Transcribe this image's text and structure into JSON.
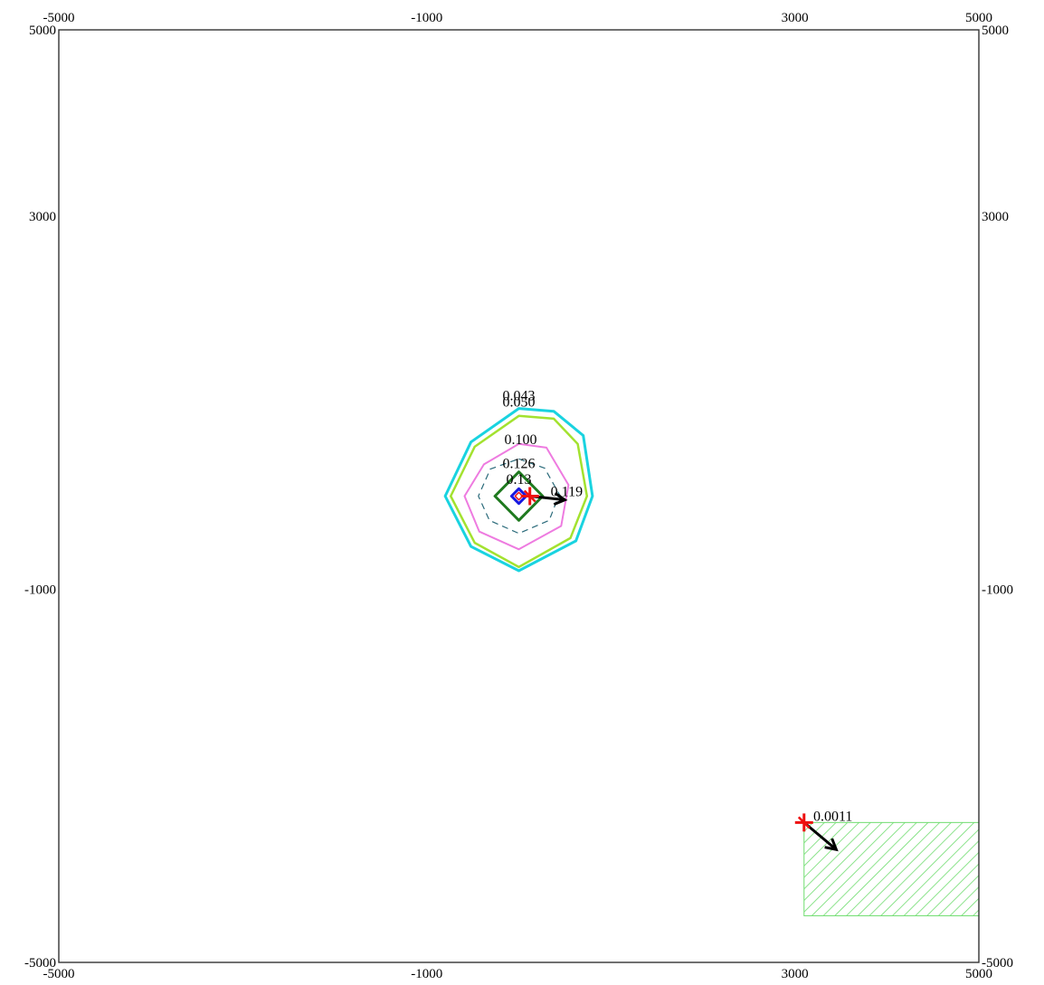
{
  "axes": {
    "x_range": [
      -5000,
      5000
    ],
    "y_range": [
      -5000,
      5000
    ],
    "top_ticks": [
      {
        "value": -5000,
        "label": "-5000"
      },
      {
        "value": -1000,
        "label": "-1000"
      },
      {
        "value": 3000,
        "label": "3000"
      },
      {
        "value": 5000,
        "label": "5000"
      }
    ],
    "bottom_ticks": [
      {
        "value": -5000,
        "label": "-5000"
      },
      {
        "value": -1000,
        "label": "-1000"
      },
      {
        "value": 3000,
        "label": "3000"
      },
      {
        "value": 5000,
        "label": "5000"
      }
    ],
    "left_ticks": [
      {
        "value": 5000,
        "label": "5000"
      },
      {
        "value": 3000,
        "label": "3000"
      },
      {
        "value": -1000,
        "label": "-1000"
      },
      {
        "value": -5000,
        "label": "-5000"
      }
    ],
    "right_ticks": [
      {
        "value": 5000,
        "label": "5000"
      },
      {
        "value": 3000,
        "label": "3000"
      },
      {
        "value": -1000,
        "label": "-1000"
      },
      {
        "value": -5000,
        "label": "-5000"
      }
    ]
  },
  "colors": {
    "cyan": "#19d3e0",
    "yellow_green": "#a3e22f",
    "magenta": "#ee7be0",
    "dashed": "#2a6a7a",
    "green": "#1f7a1f",
    "blue": "#1818e0",
    "red": "#ee1010",
    "hatch": "#6fdc6f",
    "arrow": "#000000"
  },
  "contours": [
    {
      "id": "c-0043",
      "label": "0.043",
      "color": "cyan",
      "width": 3,
      "dash": false,
      "points": [
        [
          0,
          940
        ],
        [
          380,
          910
        ],
        [
          700,
          650
        ],
        [
          800,
          0
        ],
        [
          620,
          -480
        ],
        [
          0,
          -800
        ],
        [
          -520,
          -540
        ],
        [
          -800,
          0
        ],
        [
          -520,
          580
        ]
      ]
    },
    {
      "id": "c-0050",
      "label": "0.050",
      "color": "yellow_green",
      "width": 2.5,
      "dash": false,
      "points": [
        [
          0,
          860
        ],
        [
          380,
          830
        ],
        [
          640,
          560
        ],
        [
          740,
          0
        ],
        [
          560,
          -450
        ],
        [
          0,
          -760
        ],
        [
          -480,
          -500
        ],
        [
          -740,
          0
        ],
        [
          -480,
          530
        ]
      ]
    },
    {
      "id": "c-0100",
      "label": "0.100",
      "color": "magenta",
      "width": 2,
      "dash": false,
      "points": [
        [
          0,
          560
        ],
        [
          300,
          520
        ],
        [
          540,
          120
        ],
        [
          460,
          -320
        ],
        [
          0,
          -570
        ],
        [
          -430,
          -380
        ],
        [
          -590,
          0
        ],
        [
          -380,
          340
        ]
      ]
    },
    {
      "id": "c-0126",
      "label": "0.126",
      "color": "dashed",
      "width": 1.2,
      "dash": true,
      "points": [
        [
          0,
          400
        ],
        [
          280,
          300
        ],
        [
          440,
          20
        ],
        [
          330,
          -260
        ],
        [
          0,
          -400
        ],
        [
          -320,
          -260
        ],
        [
          -440,
          0
        ],
        [
          -310,
          290
        ]
      ]
    },
    {
      "id": "c-013",
      "label": "0.13",
      "color": "green",
      "width": 3,
      "dash": false,
      "points": [
        [
          0,
          260
        ],
        [
          260,
          0
        ],
        [
          0,
          -260
        ],
        [
          -260,
          0
        ]
      ]
    },
    {
      "id": "c-inner-blue",
      "label": "",
      "color": "blue",
      "width": 3,
      "dash": false,
      "points": [
        [
          0,
          80
        ],
        [
          80,
          0
        ],
        [
          0,
          -80
        ],
        [
          -80,
          0
        ]
      ]
    },
    {
      "id": "c-inner-red",
      "label": "",
      "color": "red",
      "width": 1.5,
      "dash": false,
      "points": [
        [
          0,
          40
        ],
        [
          40,
          0
        ],
        [
          0,
          -40
        ],
        [
          -40,
          0
        ]
      ]
    }
  ],
  "contour_center": [
    0,
    0
  ],
  "contour_labels": [
    {
      "id": "lbl-0043",
      "text": "0.043",
      "x": 0,
      "y": 1030
    },
    {
      "id": "lbl-0050",
      "text": "0.050",
      "x": 0,
      "y": 960
    },
    {
      "id": "lbl-0100",
      "text": "0.100",
      "x": 20,
      "y": 560
    },
    {
      "id": "lbl-0126",
      "text": "0.126",
      "x": 0,
      "y": 300
    },
    {
      "id": "lbl-013",
      "text": "0.13",
      "x": 0,
      "y": 130
    },
    {
      "id": "lbl-0119",
      "text": "0.119",
      "x": 520,
      "y": 0
    }
  ],
  "sources": [
    {
      "id": "source-center",
      "x": 120,
      "y": 0,
      "color": "red"
    },
    {
      "id": "source-receptor",
      "x": 3100,
      "y": -3500,
      "color": "red"
    }
  ],
  "receptor_value": {
    "text": "0.0011",
    "x": 3200,
    "y": -3480
  },
  "arrows": [
    {
      "id": "arrow-center",
      "from": [
        120,
        0
      ],
      "to": [
        500,
        -40
      ]
    },
    {
      "id": "arrow-receptor",
      "from": [
        3100,
        -3500
      ],
      "to": [
        3450,
        -3790
      ]
    }
  ],
  "hatched_area": {
    "x1": 3100,
    "x2": 5000,
    "y1": -3500,
    "y2": -4500
  }
}
